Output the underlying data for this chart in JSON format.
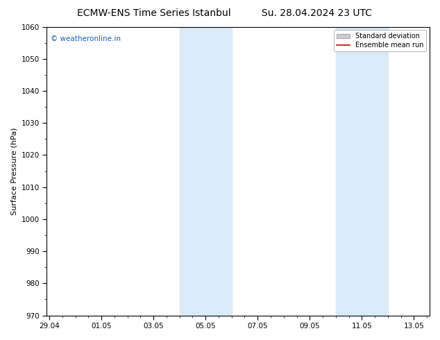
{
  "title_left": "ECMW-ENS Time Series Istanbul",
  "title_right": "Su. 28.04.2024 23 UTC",
  "ylabel": "Surface Pressure (hPa)",
  "ylim": [
    970,
    1060
  ],
  "yticks": [
    970,
    980,
    990,
    1000,
    1010,
    1020,
    1030,
    1040,
    1050,
    1060
  ],
  "xtick_labels": [
    "29.04",
    "01.05",
    "03.05",
    "05.05",
    "07.05",
    "09.05",
    "11.05",
    "13.05"
  ],
  "x_tick_positions": [
    0,
    2,
    4,
    6,
    8,
    10,
    12,
    14
  ],
  "xlim": [
    -0.1,
    14.6
  ],
  "background_color": "#ffffff",
  "plot_bg_color": "#ffffff",
  "shaded_bands": [
    {
      "x_start": 5.0,
      "x_end": 7.0
    },
    {
      "x_start": 11.0,
      "x_end": 13.0
    }
  ],
  "shaded_color": "#daeaf7",
  "watermark_text": "© weatheronline.in",
  "watermark_color": "#1a5fb4",
  "legend_entries": [
    {
      "label": "Standard deviation",
      "color": "#cccccc",
      "type": "rect"
    },
    {
      "label": "Ensemble mean run",
      "color": "#cc0000",
      "type": "line"
    }
  ],
  "title_fontsize": 10,
  "axis_fontsize": 8,
  "tick_fontsize": 7.5,
  "spine_color": "#000000"
}
